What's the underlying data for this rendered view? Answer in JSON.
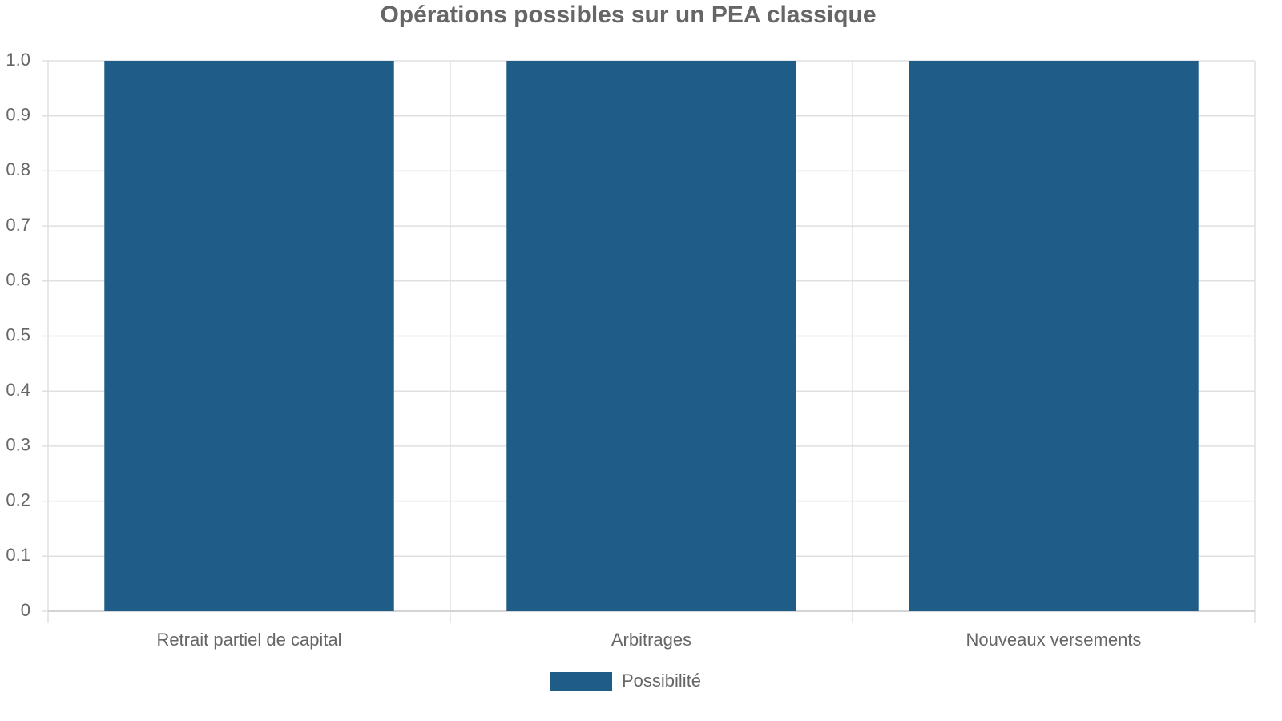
{
  "chart_data": {
    "type": "bar",
    "title": "Opérations possibles sur un PEA classique",
    "categories": [
      "Retrait partiel de capital",
      "Arbitrages",
      "Nouveaux versements"
    ],
    "series": [
      {
        "name": "Possibilité",
        "color": "#1f5c87",
        "values": [
          1,
          1,
          1
        ]
      }
    ],
    "ylim": [
      0,
      1
    ],
    "yticks": [
      0,
      0.1,
      0.2,
      0.3,
      0.4,
      0.5,
      0.6,
      0.7,
      0.8,
      0.9,
      {
        "value": 1,
        "label": "1.0"
      }
    ],
    "grid": true,
    "legend": "bottom"
  }
}
